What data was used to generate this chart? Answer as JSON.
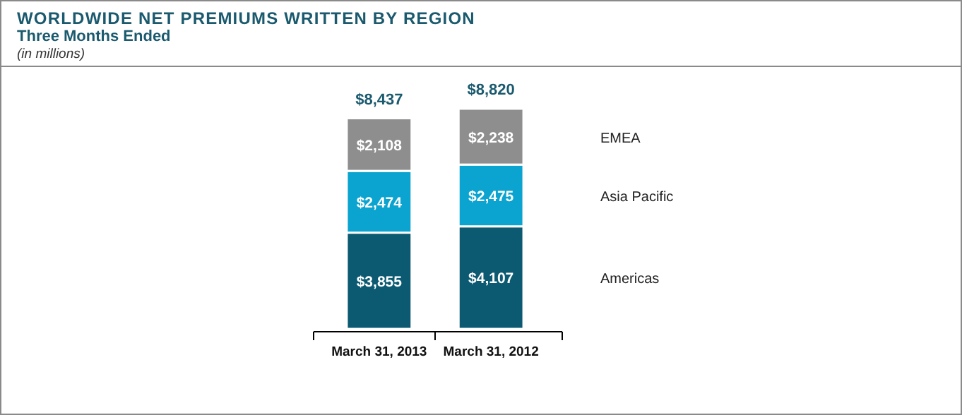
{
  "chart_data": {
    "type": "bar",
    "stacked": true,
    "title": "WORLDWIDE NET PREMIUMS WRITTEN BY REGION",
    "subtitle": "Three Months Ended",
    "annotations": [
      "(in millions)"
    ],
    "categories": [
      "March 31, 2013",
      "March 31, 2012"
    ],
    "legend": "right",
    "series": [
      {
        "name": "Americas",
        "color": "#0b5a72",
        "values": [
          3855,
          4107
        ],
        "value_labels": [
          "$3,855",
          "$4,107"
        ]
      },
      {
        "name": "Asia Pacific",
        "color": "#0ba3cf",
        "values": [
          2474,
          2475
        ],
        "value_labels": [
          "$2,474",
          "$2,475"
        ]
      },
      {
        "name": "EMEA",
        "color": "#8e8e8e",
        "values": [
          2108,
          2238
        ],
        "value_labels": [
          "$2,108",
          "$2,238"
        ]
      }
    ],
    "totals": [
      "$8,437",
      "$8,820"
    ]
  }
}
